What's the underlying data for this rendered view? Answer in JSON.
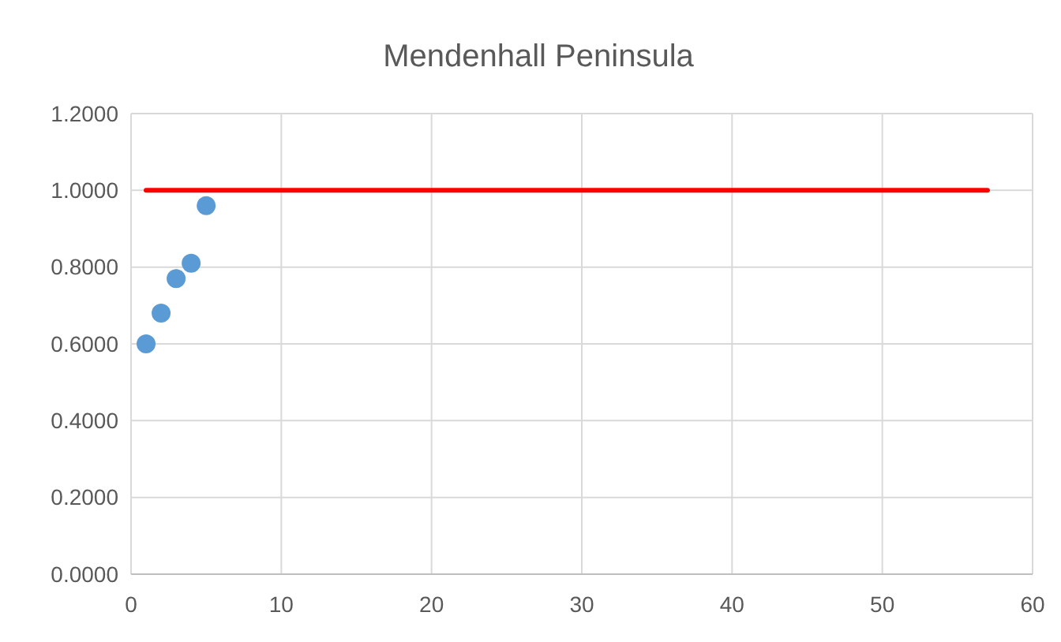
{
  "chart_data": {
    "type": "scatter",
    "title": "Mendenhall Peninsula",
    "series": [
      {
        "color": "#5b9bd5",
        "x": [
          1,
          2,
          3,
          4,
          5
        ],
        "values": [
          0.6,
          0.68,
          0.77,
          0.81,
          0.96
        ],
        "marker": "circle"
      },
      {
        "type": "line",
        "color": "#ff0000",
        "x": [
          1,
          57
        ],
        "values": [
          1,
          1
        ],
        "marker": "none"
      }
    ],
    "xlim": [
      0,
      60
    ],
    "xticks": [
      0,
      10,
      20,
      30,
      40,
      50,
      60
    ],
    "ylim": [
      0,
      1.2
    ],
    "yticks": [
      {
        "value": 0,
        "label": "0.0000"
      },
      {
        "value": 0.2,
        "label": "0.2000"
      },
      {
        "value": 0.4,
        "label": "0.4000"
      },
      {
        "value": 0.6,
        "label": "0.6000"
      },
      {
        "value": 0.8,
        "label": "0.8000"
      },
      {
        "value": 1,
        "label": "1.0000"
      },
      {
        "value": 1.2,
        "label": "1.2000"
      }
    ],
    "grid": true
  }
}
